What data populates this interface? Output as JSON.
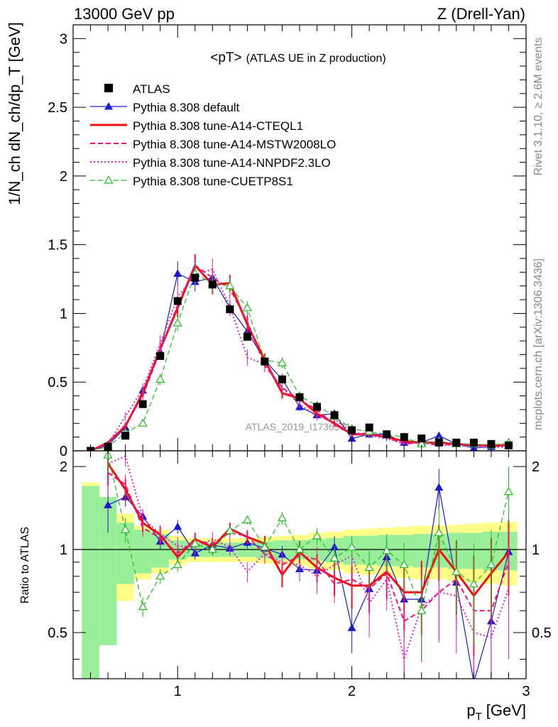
{
  "header": {
    "left": "13000 GeV pp",
    "right": "Z (Drell-Yan)"
  },
  "side": {
    "rivet": "Rivet 3.1.10, ≥ 2.6M events",
    "mcplots": "mcplots.cern.ch [arXiv:1306.3436]"
  },
  "chart_data": {
    "type": "line",
    "title": "<pT> (ATLAS UE in Z production)",
    "title_main": "<pT>",
    "title_sub": "(ATLAS UE in Z production)",
    "xlabel": "p_T [GeV]",
    "xlabel_main": "p",
    "xlabel_sub": "T",
    "xlabel_unit": "[GeV]",
    "ylabel": "1/N_ch dN_ch/dp_T [GeV]",
    "ratio_ylabel": "Ratio to ATLAS",
    "watermark": "ATLAS_2019_I1736531",
    "xlim": [
      0.4,
      3.0
    ],
    "ylim": [
      0,
      3.1
    ],
    "ratio_ylim": [
      0.34,
      2.28
    ],
    "xticks": [
      1,
      2,
      3
    ],
    "yticks": [
      0,
      0.5,
      1,
      1.5,
      2,
      2.5,
      3
    ],
    "ratio_yticks": [
      0.5,
      1,
      2
    ],
    "x": [
      0.5,
      0.6,
      0.7,
      0.8,
      0.9,
      1.0,
      1.1,
      1.2,
      1.3,
      1.4,
      1.5,
      1.6,
      1.7,
      1.8,
      1.9,
      2.0,
      2.1,
      2.2,
      2.3,
      2.4,
      2.5,
      2.6,
      2.7,
      2.8,
      2.9
    ],
    "data": {
      "name": "ATLAS",
      "values": [
        0.0,
        0.03,
        0.11,
        0.34,
        0.69,
        1.09,
        1.26,
        1.21,
        1.03,
        0.83,
        0.65,
        0.52,
        0.39,
        0.32,
        0.26,
        0.15,
        0.17,
        0.12,
        0.1,
        0.09,
        0.06,
        0.06,
        0.06,
        0.05,
        0.04
      ],
      "band_inner": [
        0.7,
        0.55,
        0.25,
        0.18,
        0.14,
        0.08,
        0.06,
        0.06,
        0.06,
        0.06,
        0.07,
        0.08,
        0.08,
        0.09,
        0.1,
        0.12,
        0.12,
        0.13,
        0.13,
        0.14,
        0.14,
        0.15,
        0.15,
        0.16,
        0.16
      ],
      "band_outer": [
        0.75,
        0.5,
        0.35,
        0.22,
        0.18,
        0.12,
        0.1,
        0.1,
        0.1,
        0.1,
        0.11,
        0.12,
        0.13,
        0.15,
        0.16,
        0.18,
        0.19,
        0.2,
        0.21,
        0.22,
        0.22,
        0.23,
        0.24,
        0.25,
        0.26
      ]
    },
    "series": [
      {
        "name": "Pythia 8.308 default",
        "color": "#1a1acc",
        "style": "solid",
        "width": 1.2,
        "marker": "triangle-filled",
        "values": [
          0.0,
          0.04,
          0.17,
          0.44,
          0.72,
          1.29,
          1.23,
          1.26,
          1.04,
          0.87,
          0.66,
          0.52,
          0.32,
          0.26,
          0.27,
          0.09,
          0.12,
          0.12,
          0.06,
          0.06,
          0.11,
          0.05,
          0.02,
          0.03,
          0.04
        ],
        "errors": [
          0.0,
          0.01,
          0.02,
          0.03,
          0.04,
          0.09,
          0.07,
          0.06,
          0.05,
          0.05,
          0.04,
          0.04,
          0.03,
          0.03,
          0.03,
          0.02,
          0.02,
          0.02,
          0.02,
          0.02,
          0.02,
          0.02,
          0.01,
          0.01,
          0.01
        ],
        "ratio": [
          null,
          1.45,
          1.55,
          1.32,
          1.07,
          1.21,
          0.97,
          1.04,
          1.01,
          1.06,
          1.01,
          0.96,
          0.85,
          0.84,
          1.02,
          0.52,
          0.72,
          0.94,
          0.66,
          0.66,
          1.68,
          0.76,
          0.33,
          0.55,
          0.98
        ],
        "ratio_err": [
          null,
          0.3,
          0.12,
          0.08,
          0.07,
          0.07,
          0.05,
          0.05,
          0.05,
          0.05,
          0.06,
          0.07,
          0.08,
          0.08,
          0.1,
          0.1,
          0.13,
          0.15,
          0.18,
          0.2,
          0.28,
          0.25,
          0.3,
          0.3,
          0.28
        ]
      },
      {
        "name": "Pythia 8.308 tune-A14-CTEQL1",
        "color": "#ee1111",
        "style": "solid",
        "width": 3,
        "marker": "none",
        "values": [
          0.0,
          0.06,
          0.18,
          0.42,
          0.74,
          1.04,
          1.35,
          1.21,
          1.22,
          0.92,
          0.66,
          0.42,
          0.38,
          0.27,
          0.2,
          0.12,
          0.12,
          0.1,
          0.07,
          0.06,
          0.06,
          0.05,
          0.04,
          0.04,
          0.04
        ],
        "errors": [
          0.0,
          0.01,
          0.02,
          0.03,
          0.05,
          0.07,
          0.08,
          0.07,
          0.06,
          0.06,
          0.05,
          0.04,
          0.03,
          0.03,
          0.02,
          0.02,
          0.02,
          0.02,
          0.02,
          0.02,
          0.02,
          0.01,
          0.01,
          0.01,
          0.01
        ],
        "ratio": [
          null,
          2.05,
          1.65,
          1.25,
          1.13,
          0.94,
          1.09,
          1.02,
          1.19,
          1.11,
          1.05,
          0.81,
          0.98,
          0.86,
          0.79,
          0.74,
          0.74,
          0.83,
          0.7,
          0.7,
          1.0,
          0.83,
          0.68,
          0.82,
          0.98
        ],
        "ratio_err": [
          null,
          0.35,
          0.15,
          0.09,
          0.08,
          0.07,
          0.06,
          0.06,
          0.06,
          0.06,
          0.07,
          0.08,
          0.09,
          0.1,
          0.11,
          0.13,
          0.15,
          0.17,
          0.19,
          0.21,
          0.23,
          0.25,
          0.27,
          0.28,
          0.3
        ]
      },
      {
        "name": "Pythia 8.308 tune-A14-MSTW2008LO",
        "color": "#ee1177",
        "style": "dashed",
        "width": 2,
        "marker": "none",
        "values": [
          0.0,
          0.05,
          0.19,
          0.4,
          0.73,
          1.06,
          1.35,
          1.26,
          1.18,
          0.94,
          0.62,
          0.46,
          0.37,
          0.3,
          0.19,
          0.12,
          0.13,
          0.1,
          0.05,
          0.06,
          0.04,
          0.05,
          0.04,
          0.03,
          0.04
        ],
        "errors": [
          0.0,
          0.01,
          0.02,
          0.03,
          0.05,
          0.07,
          0.08,
          0.07,
          0.06,
          0.06,
          0.05,
          0.04,
          0.03,
          0.03,
          0.02,
          0.02,
          0.02,
          0.02,
          0.02,
          0.02,
          0.02,
          0.01,
          0.01,
          0.01,
          0.01
        ],
        "ratio": [
          null,
          1.9,
          1.72,
          1.2,
          1.1,
          0.97,
          1.08,
          1.05,
          1.15,
          1.12,
          0.96,
          0.88,
          0.95,
          0.92,
          0.75,
          0.78,
          0.72,
          0.82,
          0.55,
          0.6,
          0.7,
          0.78,
          0.6,
          0.6,
          0.9
        ],
        "ratio_err": [
          null,
          0.35,
          0.15,
          0.09,
          0.08,
          0.07,
          0.06,
          0.06,
          0.06,
          0.06,
          0.07,
          0.08,
          0.09,
          0.1,
          0.11,
          0.13,
          0.15,
          0.17,
          0.19,
          0.21,
          0.23,
          0.25,
          0.27,
          0.28,
          0.3
        ]
      },
      {
        "name": "Pythia 8.308 tune-A14-NNPDF2.3LO",
        "color": "#dd22cc",
        "style": "dotted",
        "width": 2,
        "marker": "none",
        "values": [
          0.0,
          0.05,
          0.25,
          0.45,
          0.78,
          1.12,
          1.28,
          1.32,
          1.05,
          0.68,
          0.63,
          0.46,
          0.34,
          0.25,
          0.23,
          0.14,
          0.11,
          0.09,
          0.05,
          0.06,
          0.04,
          0.04,
          0.03,
          0.02,
          0.03
        ],
        "errors": [
          0.0,
          0.01,
          0.03,
          0.04,
          0.06,
          0.08,
          0.09,
          0.08,
          0.07,
          0.06,
          0.05,
          0.04,
          0.03,
          0.03,
          0.02,
          0.02,
          0.02,
          0.02,
          0.02,
          0.02,
          0.02,
          0.01,
          0.01,
          0.01,
          0.01
        ],
        "ratio": [
          null,
          2.05,
          2.18,
          1.3,
          1.14,
          1.03,
          1.02,
          1.09,
          1.02,
          0.83,
          0.97,
          0.9,
          0.88,
          0.8,
          0.88,
          0.95,
          0.64,
          0.78,
          0.4,
          0.62,
          0.7,
          0.68,
          0.5,
          0.48,
          0.72
        ],
        "ratio_err": [
          null,
          0.38,
          0.18,
          0.1,
          0.09,
          0.08,
          0.07,
          0.07,
          0.07,
          0.07,
          0.08,
          0.09,
          0.1,
          0.11,
          0.12,
          0.14,
          0.16,
          0.18,
          0.2,
          0.22,
          0.24,
          0.26,
          0.28,
          0.3,
          0.32
        ]
      },
      {
        "name": "Pythia 8.308 tune-CUETP8S1",
        "color": "#22bb22",
        "style": "dashed",
        "width": 1.2,
        "marker": "triangle-open",
        "values": [
          0.0,
          0.03,
          0.13,
          0.2,
          0.52,
          0.93,
          1.29,
          1.22,
          1.2,
          1.04,
          0.66,
          0.64,
          0.4,
          0.33,
          0.25,
          0.16,
          0.14,
          0.12,
          0.1,
          0.05,
          0.07,
          0.05,
          0.05,
          0.04,
          0.06
        ],
        "errors": [
          0.0,
          0.01,
          0.02,
          0.02,
          0.04,
          0.06,
          0.08,
          0.07,
          0.06,
          0.05,
          0.05,
          0.04,
          0.03,
          0.03,
          0.02,
          0.02,
          0.02,
          0.02,
          0.02,
          0.01,
          0.02,
          0.01,
          0.01,
          0.01,
          0.01
        ],
        "ratio": [
          null,
          2.2,
          1.18,
          0.62,
          0.8,
          0.88,
          1.05,
          1.0,
          1.17,
          1.28,
          1.02,
          1.3,
          1.0,
          1.12,
          0.93,
          1.02,
          0.86,
          0.99,
          0.88,
          0.6,
          1.15,
          0.83,
          0.75,
          0.88,
          1.62
        ],
        "ratio_err": [
          null,
          0.3,
          0.12,
          0.05,
          0.05,
          0.05,
          0.05,
          0.05,
          0.05,
          0.05,
          0.06,
          0.07,
          0.08,
          0.08,
          0.1,
          0.1,
          0.13,
          0.15,
          0.18,
          0.2,
          0.28,
          0.25,
          0.3,
          0.3,
          0.38
        ]
      }
    ],
    "legend_position": "top-left"
  }
}
